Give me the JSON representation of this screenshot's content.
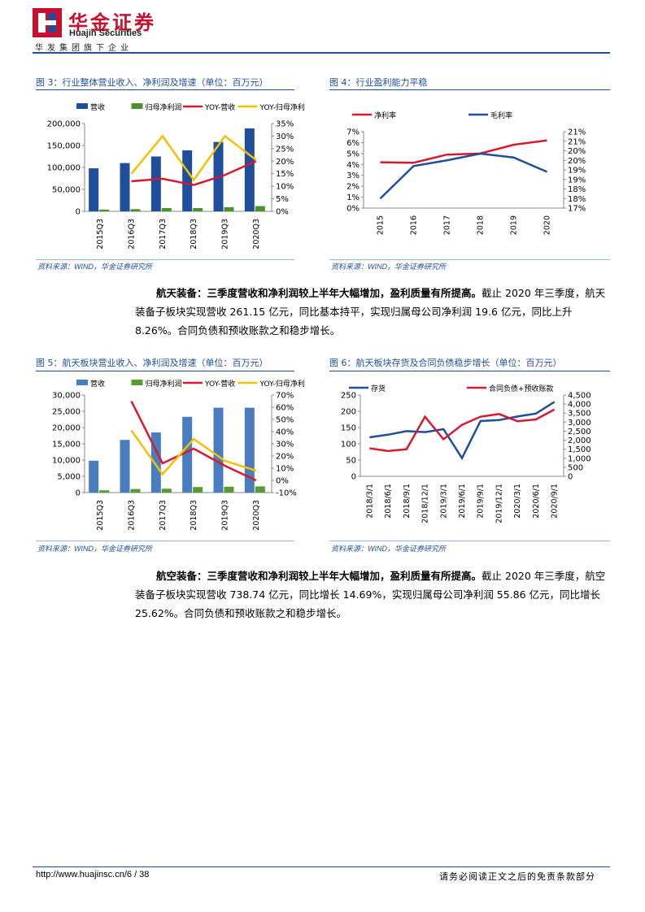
{
  "header": {
    "brand_cn": "华金证券",
    "brand_en": "Huajin Securities",
    "group": "华发集团旗下企业"
  },
  "figures": {
    "fig3": {
      "title": "图 3：行业整体营业收入、净利润及增速（单位：百万元）",
      "source": "资料来源：WIND，华金证券研究所"
    },
    "fig4": {
      "title": "图 4：行业盈利能力平稳",
      "source": "资料来源：WIND，华金证券研究所"
    },
    "fig5": {
      "title": "图 5：航天板块营业收入、净利润及增速（单位：百万元）",
      "source": "资料来源：WIND，华金证券研究所"
    },
    "fig6": {
      "title": "图 6：航天板块存货及合同负债稳步增长（单位：百万元）",
      "source": "资料来源：WIND，华金证券研究所"
    }
  },
  "paragraphs": {
    "p1_bold": "航天装备：三季度营收和净利润较上半年大幅增加，盈利质量有所提高。",
    "p1_text": "截止 2020 年三季度，航天装备子板块实现营收 261.15 亿元，同比基本持平，实现归属母公司净利润 19.6 亿元，同比上升 8.26%。合同负债和预收账款之和稳步增长。",
    "p2_bold": "航空装备：三季度营收和净利润较上半年大幅增加，盈利质量有所提高。",
    "p2_text": "截止 2020 年三季度，航空装备子板块实现营收 738.74 亿元，同比增长 14.69%，实现归属母公司净利润 55.86 亿元，同比增长 25.62%。合同负债和预收账款之和稳步增长。"
  },
  "footer": {
    "url": "http://www.huajinsc.cn/",
    "page": "6 / 38",
    "disclaimer": "请务必阅读正文之后的免责条款部分"
  },
  "colors": {
    "brand_red": "#c8102e",
    "brand_blue": "#1f4e9c"
  },
  "chart_data": [
    {
      "id": "fig3",
      "type": "bar",
      "categories": [
        "2015Q3",
        "2016Q3",
        "2017Q3",
        "2018Q3",
        "2019Q3",
        "2020Q3"
      ],
      "series": [
        {
          "name": "营收",
          "axis": "left",
          "kind": "bar",
          "color": "#1f4e9c",
          "values": [
            98000,
            110000,
            125000,
            139000,
            158000,
            189000
          ]
        },
        {
          "name": "归母净利润",
          "axis": "left",
          "kind": "bar",
          "color": "#4e8f2e",
          "values": [
            4000,
            5000,
            7500,
            7500,
            9500,
            12000
          ]
        },
        {
          "name": "YOY-营收",
          "axis": "right",
          "kind": "line",
          "color": "#d7192f",
          "values": [
            null,
            12,
            13,
            10.5,
            14.5,
            20
          ]
        },
        {
          "name": "YOY-归母净利润",
          "axis": "right",
          "kind": "line",
          "color": "#f5c000",
          "values": [
            null,
            15,
            30,
            12.5,
            30,
            20.5
          ]
        }
      ],
      "left_ticks": [
        "0",
        "50,000",
        "100,000",
        "150,000",
        "200,000"
      ],
      "right_ticks": [
        "0%",
        "5%",
        "10%",
        "15%",
        "20%",
        "25%",
        "30%",
        "35%"
      ],
      "ylim_left": [
        0,
        200000
      ],
      "ylim_right": [
        0,
        35
      ],
      "legend": "top"
    },
    {
      "id": "fig4",
      "type": "line",
      "categories": [
        "2015",
        "2016",
        "2017",
        "2018",
        "2019",
        "2020"
      ],
      "series": [
        {
          "name": "净利率",
          "axis": "left",
          "color": "#d7192f",
          "values": [
            4.2,
            4.15,
            4.9,
            5.0,
            5.8,
            6.2
          ]
        },
        {
          "name": "毛利率",
          "axis": "right",
          "color": "#1f4e9c",
          "values": [
            17.5,
            19.2,
            19.5,
            19.85,
            19.65,
            18.9
          ]
        }
      ],
      "left_ticks": [
        "0%",
        "1%",
        "2%",
        "3%",
        "4%",
        "5%",
        "6%",
        "7%"
      ],
      "right_ticks": [
        "17%",
        "18%",
        "18%",
        "19%",
        "19%",
        "20%",
        "20%",
        "21%",
        "21%"
      ],
      "ylim_left": [
        0,
        7
      ],
      "ylim_right": [
        17,
        21
      ],
      "legend": "top"
    },
    {
      "id": "fig5",
      "type": "bar",
      "categories": [
        "2015Q3",
        "2016Q3",
        "2017Q3",
        "2018Q3",
        "2019Q3",
        "2020Q3"
      ],
      "series": [
        {
          "name": "营收",
          "axis": "left",
          "kind": "bar",
          "color": "#4a7cc0",
          "values": [
            9800,
            16200,
            18500,
            23300,
            26100,
            26100
          ]
        },
        {
          "name": "归母净利润",
          "axis": "left",
          "kind": "bar",
          "color": "#5a9a32",
          "values": [
            700,
            1100,
            1200,
            1700,
            1800,
            1900
          ]
        },
        {
          "name": "YOY-营收",
          "axis": "right",
          "kind": "line",
          "color": "#d7192f",
          "values": [
            null,
            65,
            14,
            26,
            12,
            0
          ]
        },
        {
          "name": "YOY-归母净利润",
          "axis": "right",
          "kind": "line",
          "color": "#f5c000",
          "values": [
            null,
            41,
            5,
            34,
            16,
            8
          ]
        }
      ],
      "left_ticks": [
        "0",
        "5,000",
        "10,000",
        "15,000",
        "20,000",
        "25,000",
        "30,000"
      ],
      "right_ticks": [
        "-10%",
        "0%",
        "10%",
        "20%",
        "30%",
        "40%",
        "50%",
        "60%",
        "70%"
      ],
      "ylim_left": [
        0,
        30000
      ],
      "ylim_right": [
        -10,
        70
      ],
      "legend": "top"
    },
    {
      "id": "fig6",
      "type": "line",
      "categories": [
        "2018/3/1",
        "2018/6/1",
        "2018/9/1",
        "2018/12/1",
        "2019/3/1",
        "2019/6/1",
        "2019/9/1",
        "2019/12/1",
        "2020/3/1",
        "2020/6/1",
        "2020/9/1"
      ],
      "series": [
        {
          "name": "存货",
          "axis": "left",
          "color": "#1f4e9c",
          "values": [
            120,
            128,
            139,
            136,
            145,
            56,
            170,
            173,
            184,
            193,
            229
          ]
        },
        {
          "name": "合同负债+预收账款",
          "axis": "right",
          "color": "#d7192f",
          "values": [
            1550,
            1400,
            1500,
            3300,
            2050,
            2850,
            3300,
            3450,
            3050,
            3150,
            3700
          ]
        }
      ],
      "left_ticks": [
        "0",
        "50",
        "100",
        "150",
        "200",
        "250"
      ],
      "right_ticks": [
        "0",
        "500",
        "1,000",
        "1,500",
        "2,000",
        "2,500",
        "3,000",
        "3,500",
        "4,000",
        "4,500"
      ],
      "ylim_left": [
        0,
        250
      ],
      "ylim_right": [
        0,
        4500
      ],
      "legend": "top"
    }
  ]
}
